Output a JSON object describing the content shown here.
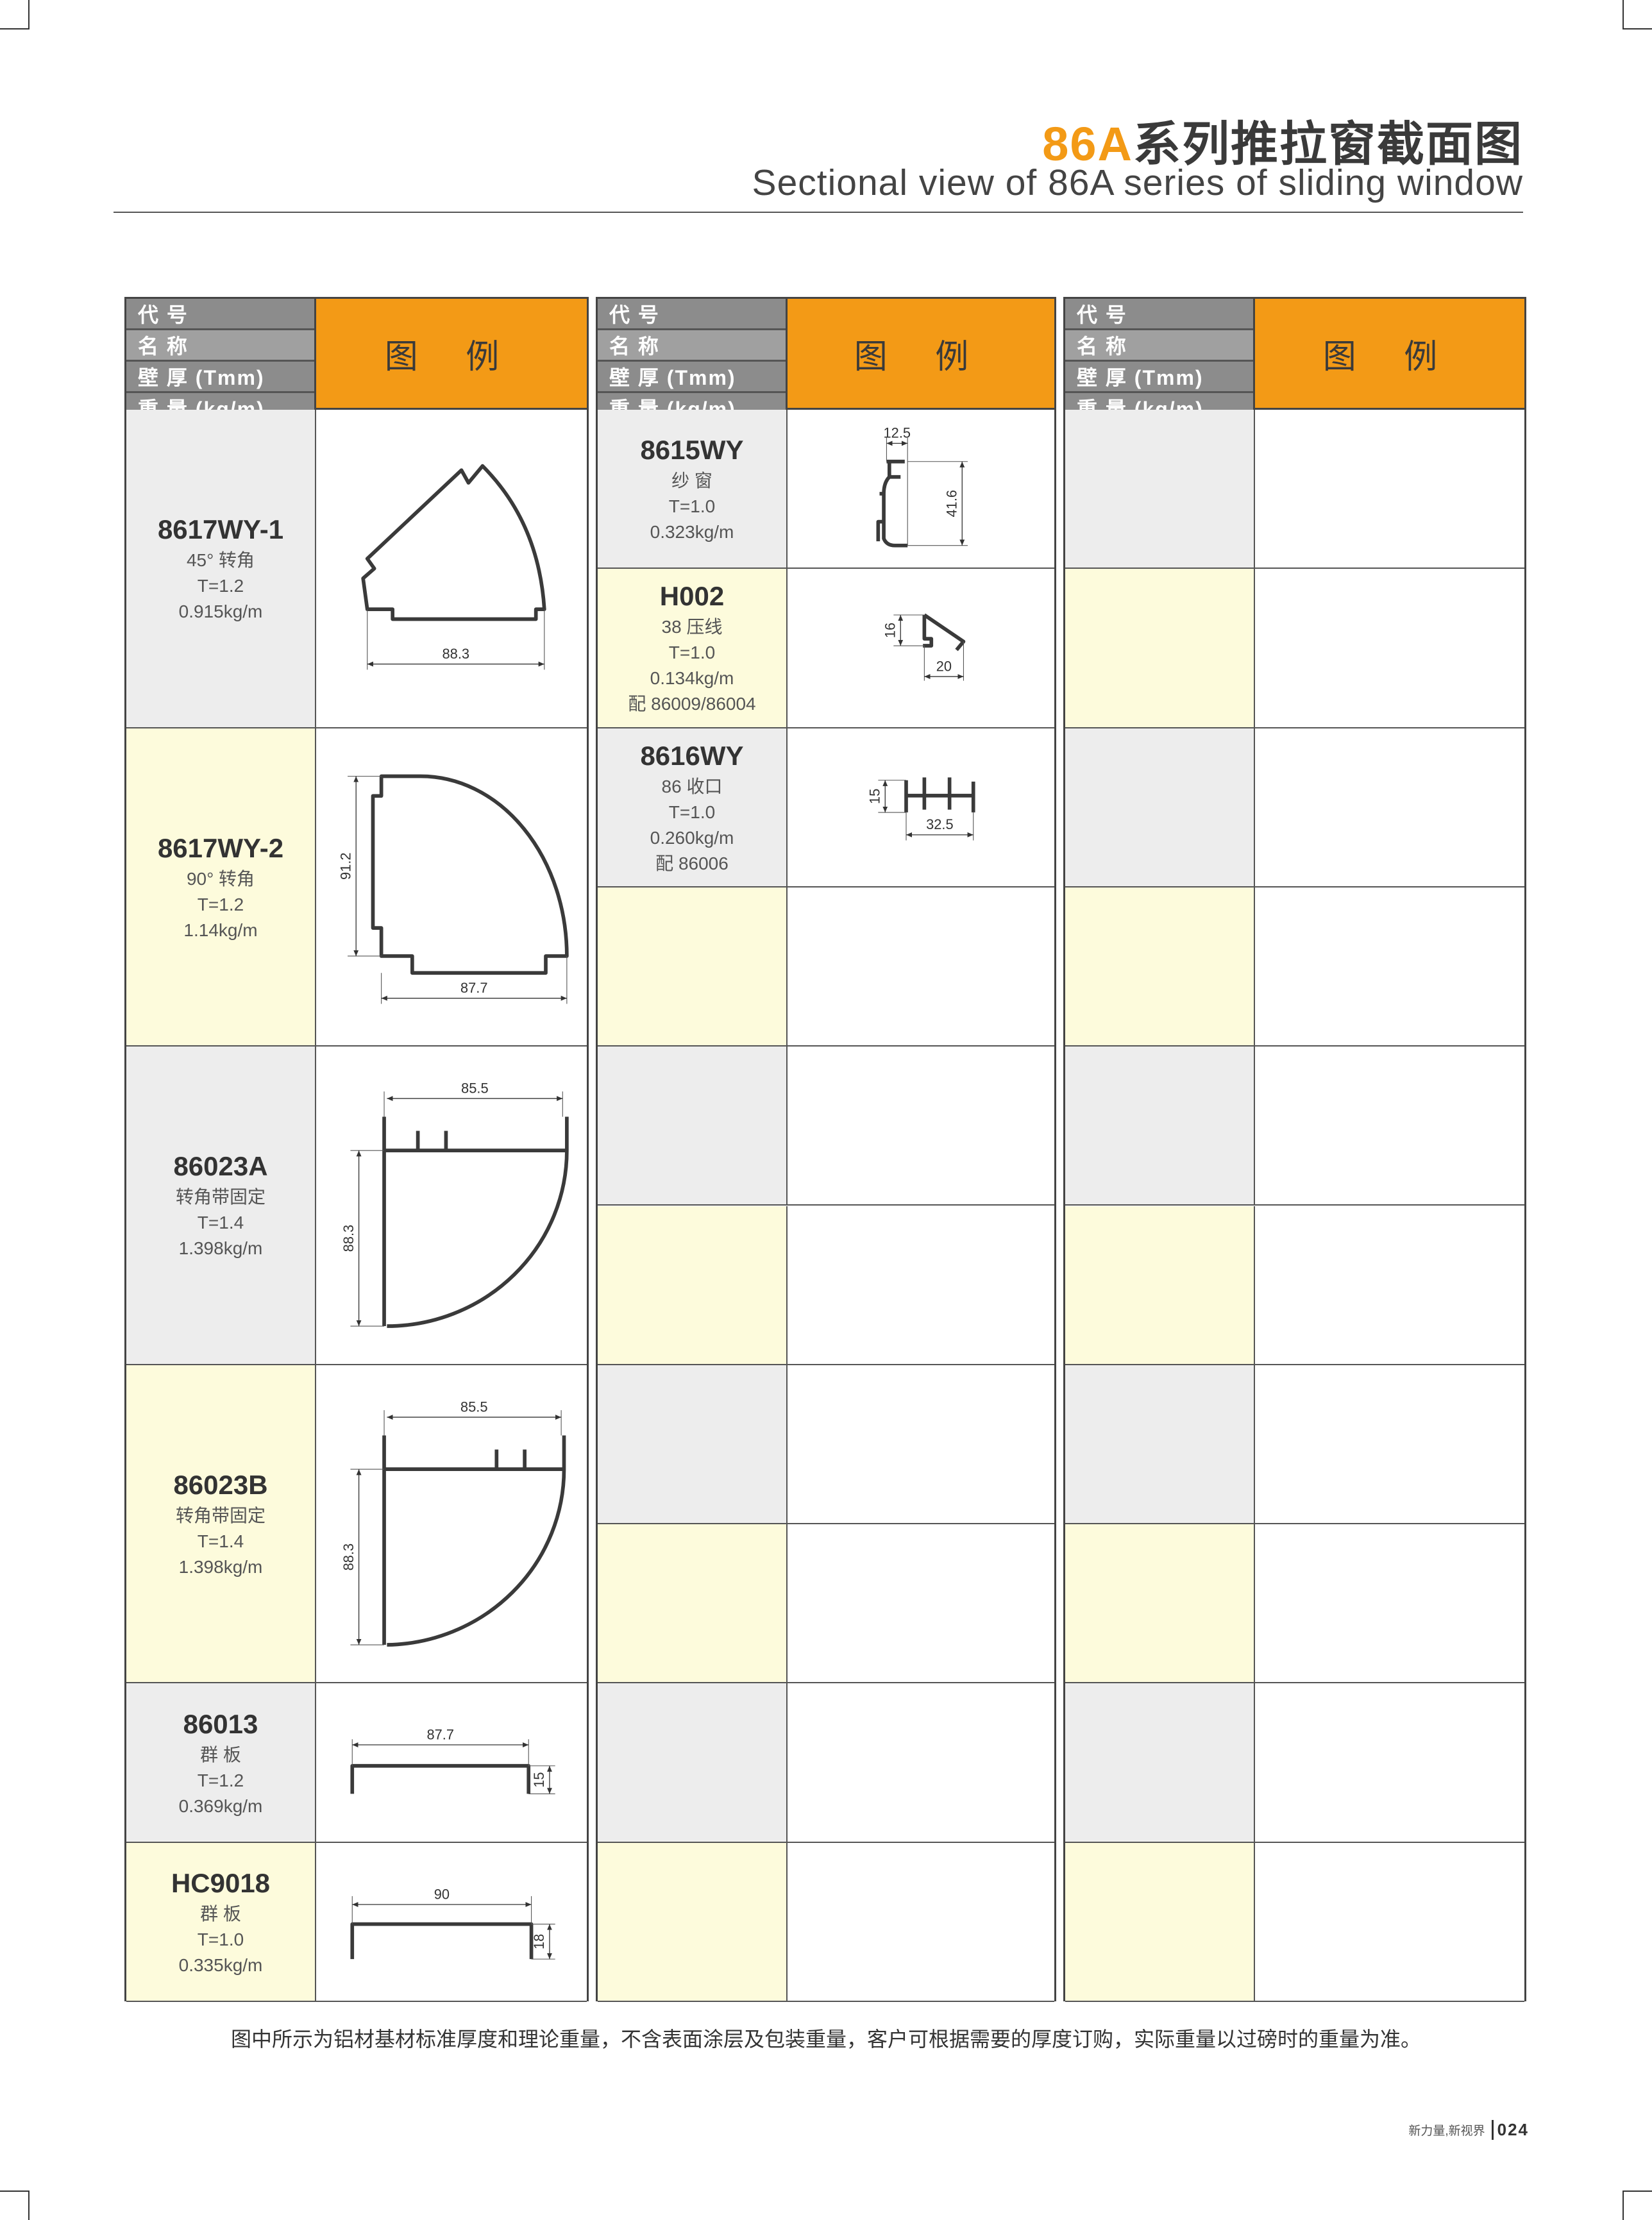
{
  "header": {
    "title_accent": "86A",
    "title_rest": "系列推拉窗截面图",
    "subtitle": "Sectional view of 86A series of sliding window"
  },
  "table_header": {
    "labels": [
      "代 号",
      "名 称",
      "壁 厚 (Tmm)",
      "重 量 (kg/m)"
    ],
    "figure": "图 例"
  },
  "groups": [
    {
      "items": [
        {
          "code": "8617WY-1",
          "lines": [
            "45°  转角",
            "T=1.2",
            "0.915kg/m"
          ],
          "fill": "gray",
          "span": 2,
          "dims": [
            "88.3"
          ]
        },
        {
          "code": "8617WY-2",
          "lines": [
            "90°  转角",
            "T=1.2",
            "1.14kg/m"
          ],
          "fill": "yellow",
          "span": 2,
          "dims": [
            "91.2",
            "87.7"
          ]
        },
        {
          "code": "86023A",
          "lines": [
            "转角带固定",
            "T=1.4",
            "1.398kg/m"
          ],
          "fill": "gray",
          "span": 2,
          "dims": [
            "85.5",
            "88.3"
          ]
        },
        {
          "code": "86023B",
          "lines": [
            "转角带固定",
            "T=1.4",
            "1.398kg/m"
          ],
          "fill": "yellow",
          "span": 2,
          "dims": [
            "85.5",
            "88.3"
          ]
        },
        {
          "code": "86013",
          "lines": [
            "群 板",
            "T=1.2",
            "0.369kg/m"
          ],
          "fill": "gray",
          "span": 1,
          "dims": [
            "87.7",
            "15"
          ]
        },
        {
          "code": "HC9018",
          "lines": [
            "群 板",
            "T=1.0",
            "0.335kg/m"
          ],
          "fill": "yellow",
          "span": 1,
          "dims": [
            "90",
            "18"
          ]
        }
      ]
    },
    {
      "items": [
        {
          "code": "8615WY",
          "lines": [
            "纱 窗",
            "T=1.0",
            "0.323kg/m"
          ],
          "fill": "gray",
          "span": 1,
          "dims": [
            "12.5",
            "41.6"
          ]
        },
        {
          "code": "H002",
          "lines": [
            "38 压线",
            "T=1.0",
            "0.134kg/m",
            "配 86009/86004"
          ],
          "fill": "yellow",
          "span": 1,
          "dims": [
            "16",
            "20"
          ]
        },
        {
          "code": "8616WY",
          "lines": [
            "86 收口",
            "T=1.0",
            "0.260kg/m",
            "配 86006"
          ],
          "fill": "gray",
          "span": 1,
          "dims": [
            "15",
            "32.5"
          ]
        },
        {
          "code": "",
          "lines": [],
          "fill": "yellow",
          "span": 1
        },
        {
          "code": "",
          "lines": [],
          "fill": "gray",
          "span": 1
        },
        {
          "code": "",
          "lines": [],
          "fill": "yellow",
          "span": 1
        },
        {
          "code": "",
          "lines": [],
          "fill": "gray",
          "span": 1
        },
        {
          "code": "",
          "lines": [],
          "fill": "yellow",
          "span": 1
        },
        {
          "code": "",
          "lines": [],
          "fill": "gray",
          "span": 1
        },
        {
          "code": "",
          "lines": [],
          "fill": "yellow",
          "span": 1
        }
      ]
    },
    {
      "items": [
        {
          "code": "",
          "lines": [],
          "fill": "gray",
          "span": 1
        },
        {
          "code": "",
          "lines": [],
          "fill": "yellow",
          "span": 1
        },
        {
          "code": "",
          "lines": [],
          "fill": "gray",
          "span": 1
        },
        {
          "code": "",
          "lines": [],
          "fill": "yellow",
          "span": 1
        },
        {
          "code": "",
          "lines": [],
          "fill": "gray",
          "span": 1
        },
        {
          "code": "",
          "lines": [],
          "fill": "yellow",
          "span": 1
        },
        {
          "code": "",
          "lines": [],
          "fill": "gray",
          "span": 1
        },
        {
          "code": "",
          "lines": [],
          "fill": "yellow",
          "span": 1
        },
        {
          "code": "",
          "lines": [],
          "fill": "gray",
          "span": 1
        },
        {
          "code": "",
          "lines": [],
          "fill": "yellow",
          "span": 1
        }
      ]
    }
  ],
  "footer": {
    "note": "图中所示为铝材基材标准厚度和理论重量，不含表面涂层及包装重量，客户可根据需要的厚度订购，实际重量以过磅时的重量为准。",
    "slogan": "新力量,新视界",
    "page_number": "024"
  },
  "colors": {
    "accent": "#f39a16",
    "header_gray": "#8c8c8c",
    "row_gray": "#ededed",
    "row_yellow": "#fdfbdc"
  }
}
